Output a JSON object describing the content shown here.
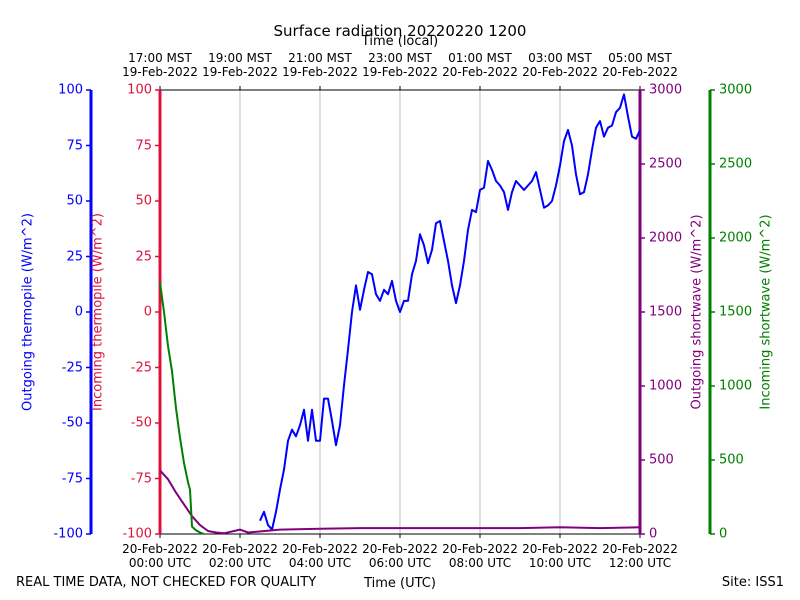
{
  "chart_data": {
    "type": "line",
    "title": "Surface radiation 20220220 1200",
    "xlabel": "Time (UTC)",
    "xlim": [
      "2022-02-20 00:00",
      "2022-02-20 12:00"
    ],
    "xticks": [
      {
        "value": "2022-02-20 00:00",
        "label": "20-Feb-2022\n00:00 UTC"
      },
      {
        "value": "2022-02-20 02:00",
        "label": "20-Feb-2022\n02:00 UTC"
      },
      {
        "value": "2022-02-20 04:00",
        "label": "20-Feb-2022\n04:00 UTC"
      },
      {
        "value": "2022-02-20 06:00",
        "label": "20-Feb-2022\n06:00 UTC"
      },
      {
        "value": "2022-02-20 08:00",
        "label": "20-Feb-2022\n08:00 UTC"
      },
      {
        "value": "2022-02-20 10:00",
        "label": "20-Feb-2022\n10:00 UTC"
      },
      {
        "value": "2022-02-20 12:00",
        "label": "20-Feb-2022\n12:00 UTC"
      }
    ],
    "top_axis": {
      "label": "Time (local)",
      "ticks": [
        {
          "value": "2022-02-20 00:00",
          "label": "17:00 MST\n19-Feb-2022"
        },
        {
          "value": "2022-02-20 02:00",
          "label": "19:00 MST\n19-Feb-2022"
        },
        {
          "value": "2022-02-20 04:00",
          "label": "21:00 MST\n19-Feb-2022"
        },
        {
          "value": "2022-02-20 06:00",
          "label": "23:00 MST\n19-Feb-2022"
        },
        {
          "value": "2022-02-20 08:00",
          "label": "01:00 MST\n20-Feb-2022"
        },
        {
          "value": "2022-02-20 10:00",
          "label": "03:00 MST\n20-Feb-2022"
        },
        {
          "value": "2022-02-20 12:00",
          "label": "05:00 MST\n20-Feb-2022"
        }
      ]
    },
    "grid": true,
    "axes": [
      {
        "label": "Outgoing thermopile (W/m^2)",
        "color": "#0000ff",
        "side": "left",
        "lim": [
          -100,
          100
        ],
        "ticks": [
          -100,
          -75,
          -50,
          -25,
          0,
          25,
          50,
          75,
          100
        ]
      },
      {
        "label": "Incoming thermopile (W/m^2)",
        "color": "#dc143c",
        "side": "left",
        "lim": [
          -100,
          100
        ],
        "ticks": [
          -100,
          -75,
          -50,
          -25,
          0,
          25,
          50,
          75,
          100
        ]
      },
      {
        "label": "Outgoing shortwave (W/m^2)",
        "color": "#800080",
        "side": "right",
        "lim": [
          0,
          3000
        ],
        "ticks": [
          0,
          500,
          1000,
          1500,
          2000,
          2500,
          3000
        ]
      },
      {
        "label": "Incoming shortwave (W/m^2)",
        "color": "#008000",
        "side": "right",
        "lim": [
          0,
          3000
        ],
        "ticks": [
          0,
          500,
          1000,
          1500,
          2000,
          2500,
          3000
        ]
      }
    ],
    "series": [
      {
        "axis": 0,
        "color": "#0000ff",
        "x": [
          "2022-02-20 02:30",
          "2022-02-20 02:36",
          "2022-02-20 02:42",
          "2022-02-20 02:48",
          "2022-02-20 02:54",
          "2022-02-20 03:00",
          "2022-02-20 03:06",
          "2022-02-20 03:12",
          "2022-02-20 03:18",
          "2022-02-20 03:24",
          "2022-02-20 03:30",
          "2022-02-20 03:36",
          "2022-02-20 03:42",
          "2022-02-20 03:48",
          "2022-02-20 03:54",
          "2022-02-20 04:00",
          "2022-02-20 04:06",
          "2022-02-20 04:12",
          "2022-02-20 04:18",
          "2022-02-20 04:24",
          "2022-02-20 04:30",
          "2022-02-20 04:36",
          "2022-02-20 04:42",
          "2022-02-20 04:48",
          "2022-02-20 04:54",
          "2022-02-20 05:00",
          "2022-02-20 05:06",
          "2022-02-20 05:12",
          "2022-02-20 05:18",
          "2022-02-20 05:24",
          "2022-02-20 05:30",
          "2022-02-20 05:36",
          "2022-02-20 05:42",
          "2022-02-20 05:48",
          "2022-02-20 05:54",
          "2022-02-20 06:00",
          "2022-02-20 06:06",
          "2022-02-20 06:12",
          "2022-02-20 06:18",
          "2022-02-20 06:24",
          "2022-02-20 06:30",
          "2022-02-20 06:36",
          "2022-02-20 06:42",
          "2022-02-20 06:48",
          "2022-02-20 06:54",
          "2022-02-20 07:00",
          "2022-02-20 07:06",
          "2022-02-20 07:12",
          "2022-02-20 07:18",
          "2022-02-20 07:24",
          "2022-02-20 07:30",
          "2022-02-20 07:36",
          "2022-02-20 07:42",
          "2022-02-20 07:48",
          "2022-02-20 07:54",
          "2022-02-20 08:00",
          "2022-02-20 08:06",
          "2022-02-20 08:12",
          "2022-02-20 08:18",
          "2022-02-20 08:24",
          "2022-02-20 08:30",
          "2022-02-20 08:36",
          "2022-02-20 08:42",
          "2022-02-20 08:48",
          "2022-02-20 08:54",
          "2022-02-20 09:00",
          "2022-02-20 09:06",
          "2022-02-20 09:12",
          "2022-02-20 09:18",
          "2022-02-20 09:24",
          "2022-02-20 09:30",
          "2022-02-20 09:36",
          "2022-02-20 09:42",
          "2022-02-20 09:48",
          "2022-02-20 09:54",
          "2022-02-20 10:00",
          "2022-02-20 10:06",
          "2022-02-20 10:12",
          "2022-02-20 10:18",
          "2022-02-20 10:24",
          "2022-02-20 10:30",
          "2022-02-20 10:36",
          "2022-02-20 10:42",
          "2022-02-20 10:48",
          "2022-02-20 10:54",
          "2022-02-20 11:00",
          "2022-02-20 11:06",
          "2022-02-20 11:12",
          "2022-02-20 11:18",
          "2022-02-20 11:24",
          "2022-02-20 11:30",
          "2022-02-20 11:36",
          "2022-02-20 11:42",
          "2022-02-20 11:48",
          "2022-02-20 11:54",
          "2022-02-20 12:00"
        ],
        "values": [
          -94,
          -90,
          -96,
          -98,
          -90,
          -80,
          -71,
          -58,
          -53,
          -56,
          -51,
          -44,
          -58,
          -44,
          -58,
          -58,
          -39,
          -39,
          -49,
          -60,
          -51,
          -33,
          -17,
          0,
          12,
          1,
          10,
          18,
          17,
          8,
          5,
          10,
          8,
          14,
          5,
          0,
          5,
          5,
          17,
          23,
          35,
          30,
          22,
          28,
          40,
          41,
          32,
          23,
          12,
          4,
          12,
          23,
          37,
          46,
          45,
          55,
          56,
          68,
          64,
          59,
          57,
          54,
          46,
          54,
          59,
          57,
          55,
          57,
          59,
          63,
          55,
          47,
          48,
          50,
          57,
          66,
          77,
          82,
          75,
          62,
          53,
          54,
          62,
          73,
          83,
          86,
          79,
          83,
          84,
          90,
          92,
          98,
          88,
          79,
          78,
          82
        ]
      },
      {
        "axis": 2,
        "color": "#800080",
        "x": [
          "2022-02-20 00:00",
          "2022-02-20 00:12",
          "2022-02-20 00:24",
          "2022-02-20 00:36",
          "2022-02-20 00:48",
          "2022-02-20 01:00",
          "2022-02-20 01:12",
          "2022-02-20 01:24",
          "2022-02-20 01:36",
          "2022-02-20 02:00",
          "2022-02-20 02:12",
          "2022-02-20 03:00",
          "2022-02-20 04:00",
          "2022-02-20 05:00",
          "2022-02-20 06:00",
          "2022-02-20 07:00",
          "2022-02-20 08:00",
          "2022-02-20 09:00",
          "2022-02-20 10:00",
          "2022-02-20 11:00",
          "2022-02-20 12:00"
        ],
        "values": [
          430,
          370,
          280,
          200,
          120,
          60,
          20,
          10,
          5,
          30,
          10,
          30,
          35,
          40,
          40,
          40,
          40,
          40,
          45,
          40,
          45
        ]
      },
      {
        "axis": 3,
        "color": "#008000",
        "x": [
          "2022-02-20 00:00",
          "2022-02-20 00:06",
          "2022-02-20 00:12",
          "2022-02-20 00:18",
          "2022-02-20 00:24",
          "2022-02-20 00:30",
          "2022-02-20 00:36",
          "2022-02-20 00:42",
          "2022-02-20 00:45",
          "2022-02-20 00:48",
          "2022-02-20 00:54",
          "2022-02-20 01:00",
          "2022-02-20 01:06"
        ],
        "values": [
          1700,
          1500,
          1270,
          1100,
          850,
          650,
          480,
          350,
          300,
          50,
          25,
          10,
          0
        ]
      }
    ],
    "footer_left": "REAL TIME DATA, NOT CHECKED FOR QUALITY",
    "footer_right": "Site: ISS1"
  }
}
